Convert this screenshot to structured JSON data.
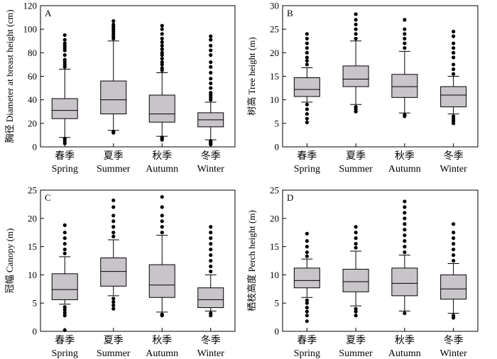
{
  "figure": {
    "background": "#ffffff",
    "box_fill": "#c8c4c9",
    "line_color": "#000000"
  },
  "chart_data": [
    {
      "type": "box",
      "panel_label": "A",
      "ylabel": "胸径 Diameter at breast height (cm)",
      "ylim": [
        0,
        120
      ],
      "yticks": [
        0,
        20,
        40,
        60,
        80,
        100,
        120
      ],
      "categories": [
        {
          "cn": "春季",
          "en": "Spring"
        },
        {
          "cn": "夏季",
          "en": "Summer"
        },
        {
          "cn": "秋季",
          "en": "Autumn"
        },
        {
          "cn": "冬季",
          "en": "Winter"
        }
      ],
      "boxes": [
        {
          "whisker_low": 8,
          "q1": 24,
          "median": 31,
          "q3": 41,
          "whisker_high": 66,
          "outliers_low": [
            7,
            5,
            3
          ],
          "outliers_high": [
            68,
            70,
            72,
            74,
            78,
            82,
            84,
            86,
            88,
            91,
            95
          ]
        },
        {
          "whisker_low": 14,
          "q1": 28,
          "median": 40,
          "q3": 56,
          "whisker_high": 90,
          "outliers_low": [
            13,
            12
          ],
          "outliers_high": [
            92,
            94,
            96,
            98,
            100,
            102,
            104,
            107
          ]
        },
        {
          "whisker_low": 9,
          "q1": 21,
          "median": 28,
          "q3": 44,
          "whisker_high": 63,
          "outliers_low": [
            8,
            7,
            6
          ],
          "outliers_high": [
            65,
            67,
            70,
            72,
            75,
            78,
            80,
            83,
            86,
            89,
            92,
            96,
            100,
            103
          ]
        },
        {
          "whisker_low": 6,
          "q1": 17,
          "median": 23,
          "q3": 29,
          "whisker_high": 38,
          "outliers_low": [
            5,
            4,
            3,
            2
          ],
          "outliers_high": [
            40,
            42,
            44,
            46,
            50,
            54,
            58,
            63,
            68,
            72,
            78,
            82,
            86,
            91,
            94
          ]
        }
      ]
    },
    {
      "type": "box",
      "panel_label": "B",
      "ylabel": "树高 Tree height (m)",
      "ylim": [
        0,
        30
      ],
      "yticks": [
        0,
        5,
        10,
        15,
        20,
        25,
        30
      ],
      "categories": [
        {
          "cn": "春季",
          "en": "Spring"
        },
        {
          "cn": "夏季",
          "en": "Summer"
        },
        {
          "cn": "秋季",
          "en": "Autumn"
        },
        {
          "cn": "冬季",
          "en": "Winter"
        }
      ],
      "boxes": [
        {
          "whisker_low": 9.5,
          "q1": 10.7,
          "median": 12.2,
          "q3": 14.7,
          "whisker_high": 16.8,
          "outliers_low": [
            9,
            8,
            7,
            6,
            5.2
          ],
          "outliers_high": [
            17.5,
            18.3,
            19,
            20,
            21,
            22,
            23,
            24
          ]
        },
        {
          "whisker_low": 9,
          "q1": 12.8,
          "median": 14.4,
          "q3": 17.2,
          "whisker_high": 22.5,
          "outliers_low": [
            8.5,
            8,
            7.5
          ],
          "outliers_high": [
            23,
            24,
            25,
            26,
            27,
            28.2
          ]
        },
        {
          "whisker_low": 7.2,
          "q1": 10.5,
          "median": 12.8,
          "q3": 15.4,
          "whisker_high": 20.3,
          "outliers_low": [
            6.8,
            6.5
          ],
          "outliers_high": [
            21,
            22,
            23,
            24,
            25,
            27
          ]
        },
        {
          "whisker_low": 7,
          "q1": 8.5,
          "median": 11,
          "q3": 12.8,
          "whisker_high": 15,
          "outliers_low": [
            6.5,
            6,
            5.5,
            5
          ],
          "outliers_high": [
            15.5,
            16.5,
            17.5,
            19,
            20,
            21,
            22,
            23.5,
            24.5
          ]
        }
      ]
    },
    {
      "type": "box",
      "panel_label": "C",
      "ylabel": "冠幅 Canopy (m)",
      "ylim": [
        0,
        25
      ],
      "yticks": [
        0,
        5,
        10,
        15,
        20,
        25
      ],
      "categories": [
        {
          "cn": "春季",
          "en": "Spring"
        },
        {
          "cn": "夏季",
          "en": "Summer"
        },
        {
          "cn": "秋季",
          "en": "Autumn"
        },
        {
          "cn": "冬季",
          "en": "Winter"
        }
      ],
      "boxes": [
        {
          "whisker_low": 4.8,
          "q1": 5.6,
          "median": 7.4,
          "q3": 10.2,
          "whisker_high": 13.2,
          "outliers_low": [
            4.3,
            3.8,
            3.3,
            2.8,
            0.2
          ],
          "outliers_high": [
            13.8,
            14.5,
            15.5,
            16.5,
            17.5,
            18.8
          ]
        },
        {
          "whisker_low": 6.3,
          "q1": 8,
          "median": 10.6,
          "q3": 13,
          "whisker_high": 16.2,
          "outliers_low": [
            5.8,
            5.2,
            4.6,
            4
          ],
          "outliers_high": [
            16.8,
            17.5,
            18.5,
            19.5,
            20.5,
            22,
            23.2
          ]
        },
        {
          "whisker_low": 3.4,
          "q1": 6,
          "median": 8.2,
          "q3": 11.8,
          "whisker_high": 17,
          "outliers_low": [
            3,
            2.8
          ],
          "outliers_high": [
            17.5,
            18.5,
            19.5,
            20.5,
            22,
            23.8
          ]
        },
        {
          "whisker_low": 3.6,
          "q1": 4.2,
          "median": 5.6,
          "q3": 7.7,
          "whisker_high": 10,
          "outliers_low": [
            3.2,
            2.8
          ],
          "outliers_high": [
            10.6,
            11.5,
            12.5,
            13.5,
            14.5,
            15.5,
            16.5,
            17.5,
            18.5
          ]
        }
      ]
    },
    {
      "type": "box",
      "panel_label": "D",
      "ylabel": "栖枝高度 Perch height (m)",
      "ylim": [
        0,
        25
      ],
      "yticks": [
        0,
        5,
        10,
        15,
        20,
        25
      ],
      "categories": [
        {
          "cn": "春季",
          "en": "Spring"
        },
        {
          "cn": "夏季",
          "en": "Summer"
        },
        {
          "cn": "秋季",
          "en": "Autumn"
        },
        {
          "cn": "冬季",
          "en": "Winter"
        }
      ],
      "boxes": [
        {
          "whisker_low": 6,
          "q1": 7.7,
          "median": 9,
          "q3": 11.2,
          "whisker_high": 12.8,
          "outliers_low": [
            5.5,
            5,
            4.2,
            3.5,
            2.8,
            1.8
          ],
          "outliers_high": [
            13.3,
            14,
            15,
            16,
            17.3
          ]
        },
        {
          "whisker_low": 4.5,
          "q1": 7,
          "median": 8.8,
          "q3": 11,
          "whisker_high": 14.2,
          "outliers_low": [
            4,
            3.5,
            2.8
          ],
          "outliers_high": [
            14.8,
            15.5,
            16.5,
            17.5,
            18.5
          ]
        },
        {
          "whisker_low": 3.6,
          "q1": 6.3,
          "median": 8.5,
          "q3": 11.2,
          "whisker_high": 13.5,
          "outliers_low": [
            3.2
          ],
          "outliers_high": [
            14,
            15,
            16,
            17,
            18,
            19,
            20,
            21,
            22,
            23
          ]
        },
        {
          "whisker_low": 3.2,
          "q1": 5.7,
          "median": 7.5,
          "q3": 10,
          "whisker_high": 12,
          "outliers_low": [
            2.8,
            2.4
          ],
          "outliers_high": [
            12.5,
            13.5,
            14.5,
            15.5,
            16.5,
            17.5,
            19
          ]
        }
      ]
    }
  ]
}
